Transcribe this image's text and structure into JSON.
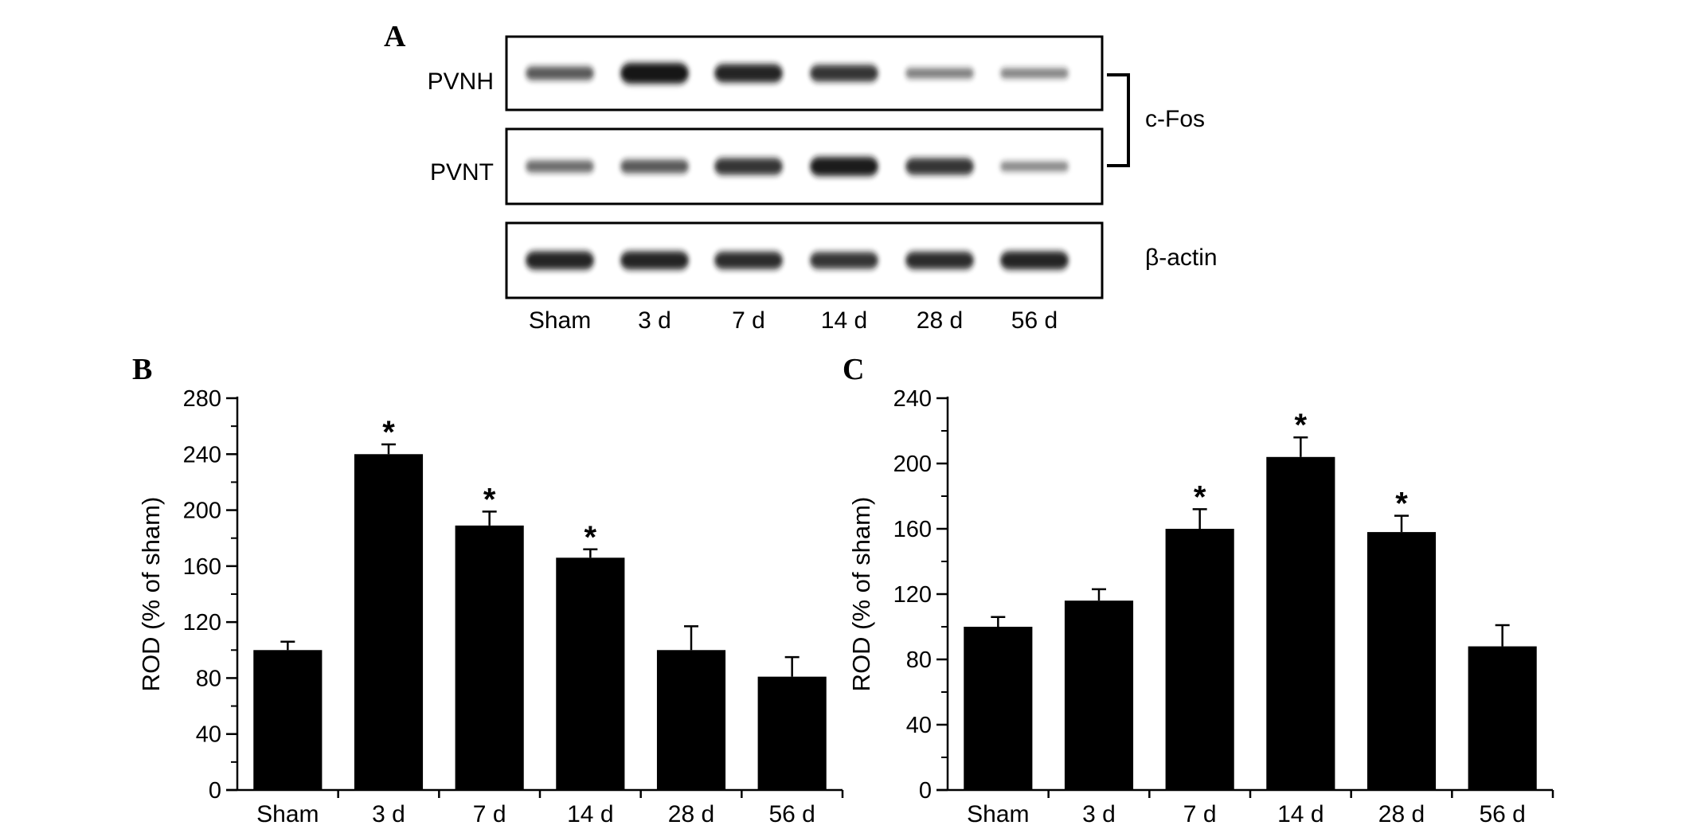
{
  "panels": {
    "a": {
      "letter": "A"
    },
    "b": {
      "letter": "B"
    },
    "c": {
      "letter": "C"
    }
  },
  "blot": {
    "rows": [
      {
        "label": "PVNH",
        "intensity": [
          0.55,
          1.0,
          0.85,
          0.75,
          0.35,
          0.32
        ]
      },
      {
        "label": "PVNT",
        "intensity": [
          0.45,
          0.55,
          0.75,
          0.9,
          0.75,
          0.3
        ]
      },
      {
        "label": "",
        "intensity": [
          0.85,
          0.85,
          0.8,
          0.75,
          0.8,
          0.85
        ]
      }
    ],
    "bracket_label": "c-Fos",
    "actin_label": "β-actin",
    "lanes": [
      "Sham",
      "3 d",
      "7 d",
      "14 d",
      "28 d",
      "56 d"
    ],
    "band_color": "#141414"
  },
  "chart_data": [
    {
      "type": "bar",
      "panel": "B",
      "categories": [
        "Sham",
        "3 d",
        "7 d",
        "14 d",
        "28 d",
        "56 d"
      ],
      "values": [
        100,
        240,
        189,
        166,
        100,
        81
      ],
      "errors": [
        6,
        7,
        10,
        6,
        17,
        14
      ],
      "significant": [
        false,
        true,
        true,
        true,
        false,
        false
      ],
      "significance_marker": "*",
      "ylabel": "ROD (% of sham)",
      "xlabel": "",
      "ylim": [
        0,
        280
      ],
      "yticks": [
        0,
        40,
        80,
        120,
        160,
        200,
        240,
        280
      ],
      "grid": false,
      "bar_color": "#000000"
    },
    {
      "type": "bar",
      "panel": "C",
      "categories": [
        "Sham",
        "3 d",
        "7 d",
        "14 d",
        "28 d",
        "56 d"
      ],
      "values": [
        100,
        116,
        160,
        204,
        158,
        88
      ],
      "errors": [
        6,
        7,
        12,
        12,
        10,
        13
      ],
      "significant": [
        false,
        false,
        true,
        true,
        true,
        false
      ],
      "significance_marker": "*",
      "ylabel": "ROD (% of sham)",
      "xlabel": "",
      "ylim": [
        0,
        240
      ],
      "yticks": [
        0,
        40,
        80,
        120,
        160,
        200,
        240
      ],
      "grid": false,
      "bar_color": "#000000"
    }
  ]
}
